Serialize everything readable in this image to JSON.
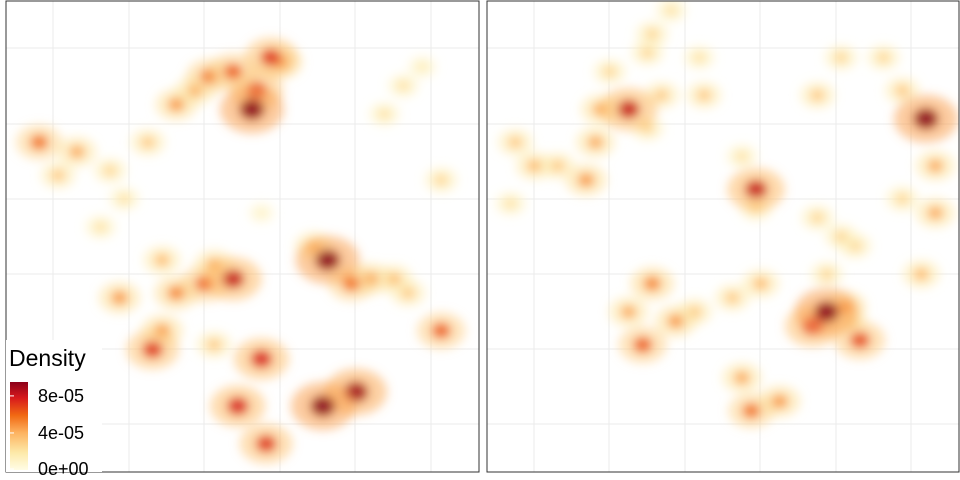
{
  "chart_data": {
    "type": "heatmap",
    "kind": "2d density maps (two panels)",
    "legend": {
      "title": "Density",
      "ticks": [
        "8e-05",
        "4e-05",
        "0e+00"
      ],
      "tick_values": [
        8e-05,
        4e-05,
        0
      ],
      "max_value": 9.5e-05,
      "colors": [
        "#fffde6",
        "#fde9a8",
        "#fdb462",
        "#f16913",
        "#d7191c",
        "#8b0019"
      ],
      "placement": "bottom-left"
    },
    "x_range": [
      0,
      1
    ],
    "y_range": [
      0,
      1
    ],
    "grid": true,
    "panels": [
      {
        "name": "left",
        "hotspots": [
          {
            "x": 0.55,
            "y": 0.94,
            "v": 0.75
          },
          {
            "x": 0.67,
            "y": 0.86,
            "v": 1.0
          },
          {
            "x": 0.74,
            "y": 0.83,
            "v": 0.95
          },
          {
            "x": 0.49,
            "y": 0.86,
            "v": 0.8
          },
          {
            "x": 0.54,
            "y": 0.76,
            "v": 0.8
          },
          {
            "x": 0.31,
            "y": 0.74,
            "v": 0.75
          },
          {
            "x": 0.33,
            "y": 0.7,
            "v": 0.5
          },
          {
            "x": 0.36,
            "y": 0.62,
            "v": 0.55
          },
          {
            "x": 0.42,
            "y": 0.6,
            "v": 0.65
          },
          {
            "x": 0.48,
            "y": 0.59,
            "v": 0.85
          },
          {
            "x": 0.44,
            "y": 0.56,
            "v": 0.45
          },
          {
            "x": 0.24,
            "y": 0.63,
            "v": 0.5
          },
          {
            "x": 0.33,
            "y": 0.55,
            "v": 0.4
          },
          {
            "x": 0.44,
            "y": 0.73,
            "v": 0.35
          },
          {
            "x": 0.92,
            "y": 0.7,
            "v": 0.65
          },
          {
            "x": 0.85,
            "y": 0.62,
            "v": 0.35
          },
          {
            "x": 0.68,
            "y": 0.55,
            "v": 1.0
          },
          {
            "x": 0.73,
            "y": 0.6,
            "v": 0.6
          },
          {
            "x": 0.77,
            "y": 0.59,
            "v": 0.5
          },
          {
            "x": 0.82,
            "y": 0.59,
            "v": 0.4
          },
          {
            "x": 0.65,
            "y": 0.52,
            "v": 0.4
          },
          {
            "x": 0.92,
            "y": 0.38,
            "v": 0.3
          },
          {
            "x": 0.07,
            "y": 0.3,
            "v": 0.6
          },
          {
            "x": 0.15,
            "y": 0.32,
            "v": 0.45
          },
          {
            "x": 0.11,
            "y": 0.37,
            "v": 0.35
          },
          {
            "x": 0.22,
            "y": 0.36,
            "v": 0.3
          },
          {
            "x": 0.3,
            "y": 0.3,
            "v": 0.35
          },
          {
            "x": 0.36,
            "y": 0.22,
            "v": 0.5
          },
          {
            "x": 0.43,
            "y": 0.16,
            "v": 0.6
          },
          {
            "x": 0.48,
            "y": 0.15,
            "v": 0.65
          },
          {
            "x": 0.52,
            "y": 0.23,
            "v": 1.0
          },
          {
            "x": 0.53,
            "y": 0.19,
            "v": 0.75
          },
          {
            "x": 0.56,
            "y": 0.12,
            "v": 0.75
          },
          {
            "x": 0.58,
            "y": 0.13,
            "v": 0.55
          },
          {
            "x": 0.4,
            "y": 0.19,
            "v": 0.45
          },
          {
            "x": 0.2,
            "y": 0.48,
            "v": 0.25
          },
          {
            "x": 0.25,
            "y": 0.42,
            "v": 0.25
          },
          {
            "x": 0.8,
            "y": 0.24,
            "v": 0.25
          },
          {
            "x": 0.84,
            "y": 0.18,
            "v": 0.25
          },
          {
            "x": 0.88,
            "y": 0.14,
            "v": 0.2
          },
          {
            "x": 0.54,
            "y": 0.45,
            "v": 0.15
          }
        ]
      },
      {
        "name": "right",
        "hotspots": [
          {
            "x": 0.56,
            "y": 0.87,
            "v": 0.6
          },
          {
            "x": 0.54,
            "y": 0.8,
            "v": 0.45
          },
          {
            "x": 0.62,
            "y": 0.85,
            "v": 0.5
          },
          {
            "x": 0.33,
            "y": 0.73,
            "v": 0.65
          },
          {
            "x": 0.4,
            "y": 0.68,
            "v": 0.5
          },
          {
            "x": 0.3,
            "y": 0.66,
            "v": 0.45
          },
          {
            "x": 0.35,
            "y": 0.6,
            "v": 0.55
          },
          {
            "x": 0.44,
            "y": 0.66,
            "v": 0.35
          },
          {
            "x": 0.72,
            "y": 0.66,
            "v": 1.0
          },
          {
            "x": 0.69,
            "y": 0.69,
            "v": 0.8
          },
          {
            "x": 0.79,
            "y": 0.72,
            "v": 0.7
          },
          {
            "x": 0.76,
            "y": 0.65,
            "v": 0.5
          },
          {
            "x": 0.52,
            "y": 0.63,
            "v": 0.35
          },
          {
            "x": 0.58,
            "y": 0.6,
            "v": 0.4
          },
          {
            "x": 0.57,
            "y": 0.4,
            "v": 0.85
          },
          {
            "x": 0.72,
            "y": 0.58,
            "v": 0.3
          },
          {
            "x": 0.78,
            "y": 0.52,
            "v": 0.3
          },
          {
            "x": 0.92,
            "y": 0.58,
            "v": 0.4
          },
          {
            "x": 0.95,
            "y": 0.45,
            "v": 0.45
          },
          {
            "x": 0.95,
            "y": 0.35,
            "v": 0.45
          },
          {
            "x": 0.93,
            "y": 0.25,
            "v": 1.0
          },
          {
            "x": 0.77,
            "y": 0.68,
            "v": 0.3
          },
          {
            "x": 0.3,
            "y": 0.23,
            "v": 0.85
          },
          {
            "x": 0.24,
            "y": 0.23,
            "v": 0.45
          },
          {
            "x": 0.23,
            "y": 0.3,
            "v": 0.45
          },
          {
            "x": 0.21,
            "y": 0.38,
            "v": 0.5
          },
          {
            "x": 0.1,
            "y": 0.35,
            "v": 0.4
          },
          {
            "x": 0.15,
            "y": 0.35,
            "v": 0.35
          },
          {
            "x": 0.06,
            "y": 0.3,
            "v": 0.35
          },
          {
            "x": 0.37,
            "y": 0.2,
            "v": 0.35
          },
          {
            "x": 0.46,
            "y": 0.2,
            "v": 0.35
          },
          {
            "x": 0.34,
            "y": 0.27,
            "v": 0.3
          },
          {
            "x": 0.26,
            "y": 0.15,
            "v": 0.3
          },
          {
            "x": 0.34,
            "y": 0.11,
            "v": 0.3
          },
          {
            "x": 0.35,
            "y": 0.07,
            "v": 0.3
          },
          {
            "x": 0.39,
            "y": 0.02,
            "v": 0.25
          },
          {
            "x": 0.7,
            "y": 0.2,
            "v": 0.35
          },
          {
            "x": 0.75,
            "y": 0.12,
            "v": 0.3
          },
          {
            "x": 0.88,
            "y": 0.19,
            "v": 0.35
          },
          {
            "x": 0.84,
            "y": 0.12,
            "v": 0.3
          },
          {
            "x": 0.05,
            "y": 0.43,
            "v": 0.25
          },
          {
            "x": 0.7,
            "y": 0.46,
            "v": 0.3
          },
          {
            "x": 0.75,
            "y": 0.5,
            "v": 0.3
          },
          {
            "x": 0.88,
            "y": 0.42,
            "v": 0.3
          },
          {
            "x": 0.57,
            "y": 0.44,
            "v": 0.3
          },
          {
            "x": 0.54,
            "y": 0.33,
            "v": 0.25
          },
          {
            "x": 0.45,
            "y": 0.12,
            "v": 0.25
          }
        ]
      }
    ]
  }
}
